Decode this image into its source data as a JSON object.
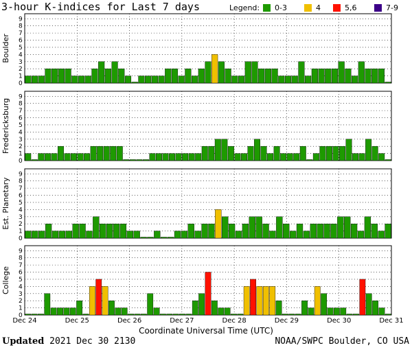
{
  "title": "3-hour K-indices for Last 7 days",
  "legend": {
    "label": "Legend:",
    "items": [
      {
        "label": "0-3",
        "color": "#1e9a00"
      },
      {
        "label": "4",
        "color": "#f0c000"
      },
      {
        "label": "5,6",
        "color": "#ff1100"
      },
      {
        "label": "7-9",
        "color": "#3c0088"
      }
    ]
  },
  "footer": {
    "updated_label": "Updated",
    "updated_value": "2021 Dec 30 2130",
    "credit": "NOAA/SWPC Boulder, CO USA"
  },
  "chart_data": {
    "type": "bar",
    "xlabel": "Coordinate Universal Time (UTC)",
    "x_tick_labels": [
      "Dec 24",
      "Dec 25",
      "Dec 26",
      "Dec 27",
      "Dec 28",
      "Dec 29",
      "Dec 30",
      "Dec 31"
    ],
    "y_tick_labels": [
      "0",
      "1",
      "2",
      "3",
      "4",
      "5",
      "6",
      "7",
      "8",
      "9"
    ],
    "ylim": [
      0,
      9
    ],
    "grid": true,
    "panels": [
      {
        "name": "Boulder",
        "values": [
          1,
          1,
          1,
          2,
          2,
          2,
          2,
          1,
          1,
          1,
          2,
          3,
          2,
          3,
          2,
          1,
          0,
          1,
          1,
          1,
          1,
          2,
          2,
          1,
          2,
          1,
          2,
          3,
          4,
          3,
          2,
          1,
          1,
          3,
          3,
          2,
          2,
          2,
          1,
          1,
          1,
          3,
          1,
          2,
          2,
          2,
          2,
          3,
          2,
          1,
          3,
          2,
          2,
          2,
          0
        ]
      },
      {
        "name": "Fredericksburg",
        "values": [
          1,
          0,
          1,
          1,
          1,
          2,
          1,
          1,
          1,
          1,
          2,
          2,
          2,
          2,
          2,
          0,
          0,
          0,
          0,
          1,
          1,
          1,
          1,
          1,
          1,
          1,
          1,
          2,
          2,
          3,
          3,
          2,
          1,
          1,
          2,
          3,
          2,
          1,
          2,
          1,
          1,
          1,
          2,
          0,
          1,
          2,
          2,
          2,
          2,
          3,
          1,
          1,
          3,
          2,
          1,
          0
        ]
      },
      {
        "name": "Est. Planetary",
        "values": [
          1,
          1,
          1,
          2,
          1,
          1,
          1,
          2,
          2,
          1,
          3,
          2,
          2,
          2,
          2,
          1,
          1,
          0,
          0,
          1,
          0,
          0,
          1,
          1,
          2,
          1,
          2,
          2,
          4,
          3,
          2,
          1,
          2,
          3,
          3,
          2,
          1,
          3,
          2,
          1,
          2,
          1,
          2,
          2,
          2,
          2,
          3,
          3,
          2,
          1,
          3,
          2,
          1,
          2
        ]
      },
      {
        "name": "College",
        "values": [
          0,
          0,
          0,
          3,
          1,
          1,
          1,
          1,
          2,
          0,
          4,
          5,
          4,
          2,
          1,
          1,
          0,
          0,
          0,
          3,
          1,
          0,
          0,
          0,
          0,
          0,
          2,
          3,
          6,
          2,
          1,
          1,
          0,
          0,
          4,
          5,
          4,
          4,
          4,
          2,
          0,
          0,
          0,
          2,
          1,
          4,
          3,
          1,
          1,
          1,
          0,
          0,
          5,
          3,
          2,
          1,
          0
        ]
      }
    ]
  }
}
